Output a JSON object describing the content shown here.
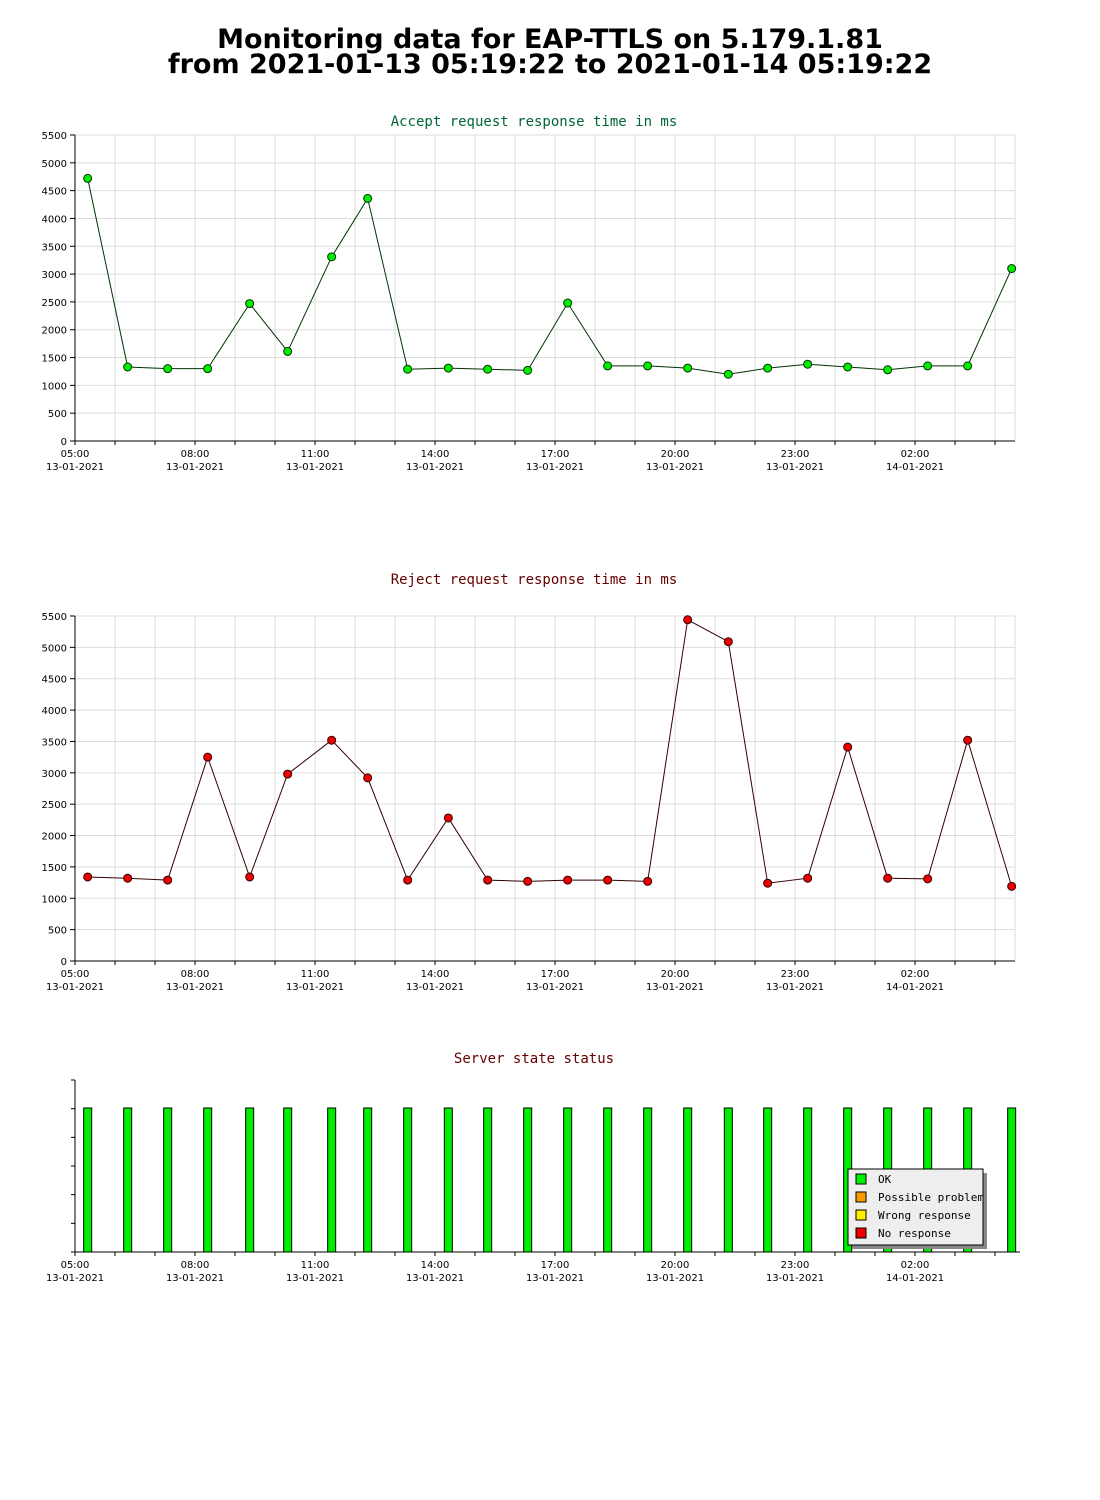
{
  "page": {
    "title_line1": "Monitoring data for EAP-TTLS on 5.179.1.81",
    "title_line2": "from 2021-01-13 05:19:22 to 2021-01-14 05:19:22"
  },
  "colors": {
    "accept_title": "#006633",
    "reject_title": "#660000",
    "status_title": "#660000",
    "accept_line": "#003300",
    "accept_marker": "#00ee00",
    "reject_line": "#330000",
    "reject_marker": "#ee0000",
    "grid": "#dddddd",
    "status_bar": "#00ee00"
  },
  "x_ticks": [
    {
      "time": "05:00",
      "date": "13-01-2021"
    },
    {
      "time": "08:00",
      "date": "13-01-2021"
    },
    {
      "time": "11:00",
      "date": "13-01-2021"
    },
    {
      "time": "14:00",
      "date": "13-01-2021"
    },
    {
      "time": "17:00",
      "date": "13-01-2021"
    },
    {
      "time": "20:00",
      "date": "13-01-2021"
    },
    {
      "time": "23:00",
      "date": "13-01-2021"
    },
    {
      "time": "02:00",
      "date": "14-01-2021"
    }
  ],
  "legend": {
    "placement": "bottom-right",
    "items": [
      {
        "label": "OK",
        "color": "#00ee00"
      },
      {
        "label": "Possible problem",
        "color": "#ff9900"
      },
      {
        "label": "Wrong response",
        "color": "#ffee00"
      },
      {
        "label": "No response",
        "color": "#ee0000"
      }
    ]
  },
  "chart_data": [
    {
      "type": "line",
      "title": "Accept request response time in ms",
      "xlabel": "",
      "ylabel": "",
      "ylim": [
        0,
        5500
      ],
      "yticks": [
        0,
        500,
        1000,
        1500,
        2000,
        2500,
        3000,
        3500,
        4000,
        4500,
        5000,
        5500
      ],
      "grid": true,
      "x": [
        "05:19",
        "06:19",
        "07:19",
        "08:19",
        "09:22",
        "10:19",
        "11:25",
        "12:19",
        "13:19",
        "14:20",
        "15:19",
        "16:19",
        "17:19",
        "18:19",
        "19:19",
        "20:19",
        "21:20",
        "22:19",
        "23:19",
        "00:19",
        "01:19",
        "02:19",
        "03:19",
        "04:25"
      ],
      "series": [
        {
          "values": [
            4720,
            1330,
            1300,
            1300,
            2470,
            1610,
            3310,
            4360,
            1290,
            1310,
            1290,
            1270,
            2480,
            1350,
            1350,
            1310,
            1200,
            1310,
            1380,
            1330,
            1280,
            1350,
            1350,
            3100
          ]
        }
      ]
    },
    {
      "type": "line",
      "title": "Reject request response time in ms",
      "xlabel": "",
      "ylabel": "",
      "ylim": [
        0,
        5500
      ],
      "yticks": [
        0,
        500,
        1000,
        1500,
        2000,
        2500,
        3000,
        3500,
        4000,
        4500,
        5000,
        5500
      ],
      "grid": true,
      "x": [
        "05:19",
        "06:19",
        "07:19",
        "08:19",
        "09:22",
        "10:19",
        "11:25",
        "12:19",
        "13:19",
        "14:20",
        "15:19",
        "16:19",
        "17:19",
        "18:19",
        "19:19",
        "20:19",
        "21:20",
        "22:19",
        "23:19",
        "00:19",
        "01:19",
        "02:19",
        "03:19",
        "04:25"
      ],
      "series": [
        {
          "values": [
            1340,
            1320,
            1290,
            3250,
            1340,
            2980,
            3520,
            2920,
            1290,
            2280,
            1290,
            1270,
            1290,
            1290,
            1270,
            5440,
            5090,
            1240,
            1320,
            3410,
            1320,
            1310,
            3520,
            1190
          ]
        }
      ]
    },
    {
      "type": "bar",
      "title": "Server state status",
      "xlabel": "",
      "ylabel": "",
      "grid": false,
      "x": [
        "05:19",
        "06:19",
        "07:19",
        "08:19",
        "09:22",
        "10:19",
        "11:25",
        "12:19",
        "13:19",
        "14:20",
        "15:19",
        "16:19",
        "17:19",
        "18:19",
        "19:19",
        "20:19",
        "21:20",
        "22:19",
        "23:19",
        "00:19",
        "01:19",
        "02:19",
        "03:19",
        "04:25"
      ],
      "series": [
        {
          "values": [
            "OK",
            "OK",
            "OK",
            "OK",
            "OK",
            "OK",
            "OK",
            "OK",
            "OK",
            "OK",
            "OK",
            "OK",
            "OK",
            "OK",
            "OK",
            "OK",
            "OK",
            "OK",
            "OK",
            "OK",
            "OK",
            "OK",
            "OK",
            "OK"
          ]
        }
      ]
    }
  ]
}
